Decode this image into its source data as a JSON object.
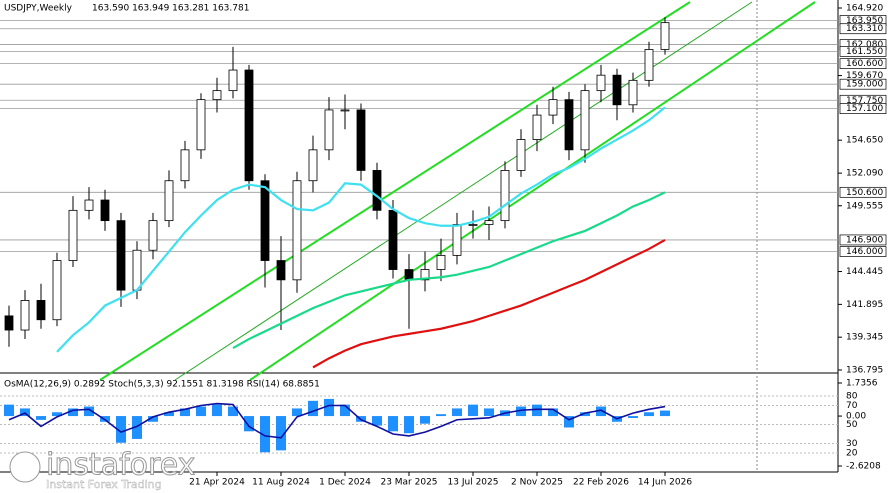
{
  "chart_data": [
    {
      "type": "candlestick",
      "title": "USDJPY,Weekly",
      "quote": "163.590 163.949 163.281 163.781",
      "categories": [
        null,
        null,
        null,
        null,
        null,
        null,
        null,
        null,
        null,
        null,
        null,
        null,
        null,
        "21 Apr 2024",
        null,
        null,
        null,
        "11 Aug 2024",
        null,
        null,
        null,
        "1 Dec 2024",
        null,
        null,
        null,
        "23 Mar 2025",
        null,
        null,
        null,
        "13 Jul 2025",
        null,
        null,
        null,
        "2 Nov 2025",
        null,
        null,
        null,
        "22 Feb 2026",
        null,
        null,
        null,
        "14 Jun 2026"
      ],
      "open": [
        141.0,
        139.9,
        142.2,
        140.7,
        145.3,
        149.2,
        150.0,
        148.4,
        143.0,
        146.1,
        148.4,
        151.5,
        153.9,
        157.8,
        158.5,
        160.1,
        151.5,
        145.3,
        143.8,
        151.5,
        153.9,
        157.0,
        157.0,
        152.3,
        149.2,
        144.6,
        143.8,
        144.6,
        145.7,
        148.1,
        148.1,
        148.4,
        152.3,
        154.7,
        156.6,
        157.8,
        153.9,
        158.5,
        159.7,
        157.4,
        159.3,
        161.7
      ],
      "high": [
        141.8,
        143.0,
        143.5,
        145.9,
        150.3,
        151.0,
        150.8,
        149.0,
        146.8,
        149.0,
        152.3,
        154.6,
        158.3,
        159.5,
        161.9,
        160.5,
        152.0,
        147.2,
        152.2,
        155.0,
        158.0,
        158.2,
        157.5,
        152.9,
        150.0,
        145.8,
        146.0,
        147.0,
        149.0,
        149.2,
        149.5,
        153.0,
        155.5,
        157.4,
        158.8,
        158.4,
        159.0,
        160.5,
        160.2,
        159.9,
        162.3,
        164.2
      ],
      "low": [
        138.6,
        139.2,
        140.0,
        140.2,
        144.8,
        148.5,
        147.6,
        141.7,
        142.3,
        145.4,
        147.9,
        150.9,
        153.2,
        156.8,
        157.9,
        150.8,
        143.2,
        139.9,
        142.8,
        150.6,
        153.1,
        155.5,
        151.5,
        148.5,
        143.9,
        140.0,
        142.9,
        143.7,
        145.0,
        147.0,
        146.9,
        147.8,
        151.8,
        153.8,
        155.9,
        153.1,
        152.9,
        157.6,
        156.2,
        156.8,
        158.8,
        161.3
      ],
      "close": [
        139.9,
        142.2,
        140.7,
        145.3,
        149.2,
        150.0,
        148.4,
        143.0,
        146.1,
        148.4,
        151.5,
        153.9,
        157.8,
        158.5,
        160.1,
        151.5,
        145.3,
        143.8,
        151.5,
        153.9,
        157.0,
        157.0,
        152.3,
        149.2,
        144.6,
        143.8,
        144.6,
        145.7,
        148.1,
        148.1,
        148.4,
        152.3,
        154.7,
        156.6,
        157.8,
        153.9,
        158.5,
        159.7,
        157.4,
        159.3,
        161.7,
        163.781
      ],
      "series": [
        {
          "color": "#3fe0f0",
          "values": [
            null,
            null,
            null,
            138.2,
            139.5,
            140.5,
            141.8,
            142.4,
            143,
            144.5,
            146,
            147.5,
            148.8,
            150,
            150.8,
            151.2,
            151,
            150,
            149.3,
            149.2,
            149.8,
            151.3,
            151.2,
            150.3,
            149.3,
            148.6,
            148.2,
            148,
            148,
            148.3,
            148.7,
            149.6,
            150.5,
            151.2,
            152,
            152.5,
            153.2,
            154,
            154.7,
            155.4,
            156.2,
            157.2
          ]
        },
        {
          "color": "#19d98a",
          "values": [
            null,
            null,
            null,
            null,
            null,
            null,
            null,
            null,
            null,
            null,
            null,
            null,
            null,
            null,
            138.5,
            139.2,
            139.8,
            140.4,
            141,
            141.6,
            142.1,
            142.6,
            142.9,
            143.2,
            143.5,
            143.8,
            143.9,
            144,
            144.2,
            144.5,
            144.8,
            145.3,
            145.8,
            146.3,
            146.8,
            147.2,
            147.6,
            148.2,
            148.8,
            149.5,
            150,
            150.6
          ]
        },
        {
          "color": "#e01010",
          "values": [
            null,
            null,
            null,
            null,
            null,
            null,
            null,
            null,
            null,
            null,
            null,
            null,
            null,
            null,
            null,
            null,
            null,
            null,
            null,
            137,
            137.7,
            138.3,
            138.8,
            139.1,
            139.4,
            139.6,
            139.8,
            140,
            140.3,
            140.6,
            141,
            141.4,
            141.8,
            142.3,
            142.8,
            143.3,
            143.8,
            144.4,
            145,
            145.6,
            146.2,
            146.9
          ]
        }
      ],
      "levels": [
        {
          "value": 163.95,
          "label": "163.950"
        },
        {
          "value": 163.31,
          "label": "163.310"
        },
        {
          "value": 162.08,
          "label": "162.080"
        },
        {
          "value": 161.55,
          "label": "161.550"
        },
        {
          "value": 160.6,
          "label": "160.600"
        },
        {
          "value": 159,
          "label": "159.000"
        },
        {
          "value": 157.75,
          "label": "157.750"
        },
        {
          "value": 157.1,
          "label": "157.100"
        },
        {
          "value": 150.6,
          "label": "150.600"
        },
        {
          "value": 146.9,
          "label": "146.900"
        },
        {
          "value": 146,
          "label": "146.000"
        }
      ],
      "ylim": [
        136.795,
        164.92
      ],
      "yticks": [
        {
          "value": 164.92,
          "label": "164.920"
        },
        {
          "value": 159.67,
          "label": "159.670"
        },
        {
          "value": 154.65,
          "label": "154.650"
        },
        {
          "value": 152.09,
          "label": "152.090"
        },
        {
          "value": 149.555,
          "label": "149.555"
        },
        {
          "value": 144.445,
          "label": "144.445"
        },
        141.895,
        139.345,
        136.795
      ],
      "watermark": {
        "brand": "instaforex",
        "tagline": "Instant Forex Trading"
      }
    },
    {
      "type": "bar",
      "title": "OsMA(12,26,9) 0.2892  Stoch(5,3,3) 92.1551 81.3198  RSI(14) 68.8851",
      "color": "#1e90ff",
      "values": [
        0.6,
        0.4,
        -0.2,
        0.2,
        0.4,
        0.5,
        -0.3,
        -1.4,
        -1.2,
        -0.3,
        0.2,
        0.4,
        0.5,
        0.6,
        0.5,
        -0.8,
        -1.9,
        -1.8,
        0.4,
        0.8,
        0.9,
        0.6,
        -0.3,
        -0.5,
        -0.8,
        -0.9,
        -0.4,
        0.1,
        0.4,
        0.6,
        0.4,
        0.3,
        0.5,
        0.6,
        0.4,
        -0.6,
        0.2,
        0.5,
        -0.3,
        -0.1,
        0.2,
        0.2892
      ],
      "ylim": [
        -2.6208,
        1.7356
      ],
      "yticks": [
        1.7356,
        {
          "value": 0,
          "label": "0.00"
        },
        -2.6208
      ],
      "line": {
        "color": "#1010a0",
        "axis": "y2",
        "values": [
          55,
          62,
          48,
          58,
          65,
          66,
          55,
          42,
          48,
          58,
          63,
          66,
          70,
          72,
          71,
          48,
          38,
          36,
          58,
          64,
          70,
          70,
          55,
          48,
          40,
          38,
          42,
          48,
          55,
          56,
          57,
          62,
          65,
          66,
          66,
          55,
          62,
          65,
          56,
          62,
          66,
          68.8851
        ]
      },
      "y2lim": [
        0,
        100
      ],
      "y2ticks": [
        80,
        70,
        50,
        30,
        20
      ]
    }
  ]
}
